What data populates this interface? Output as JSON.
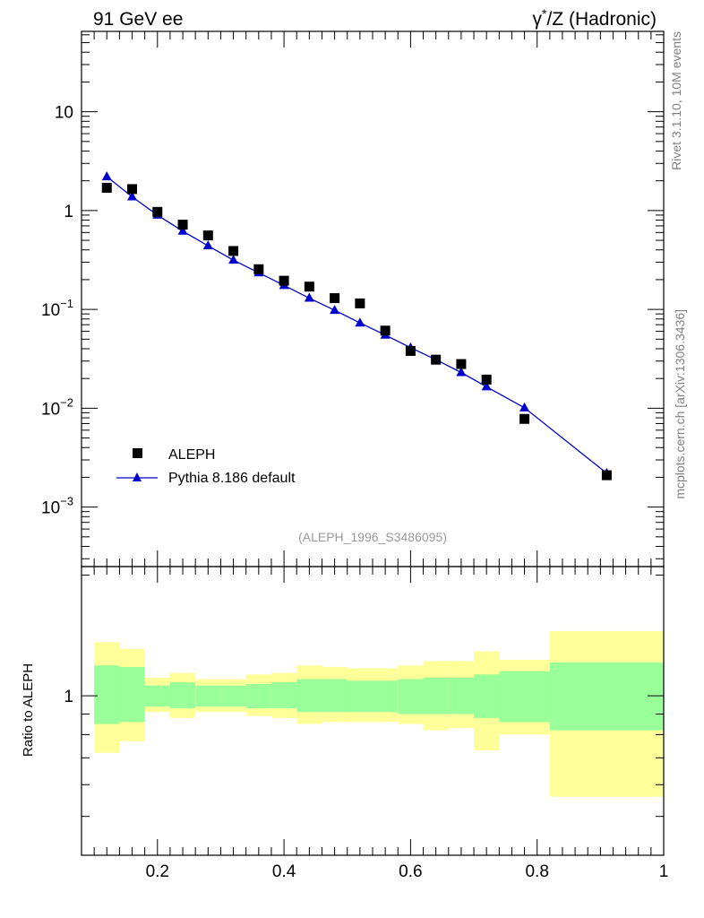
{
  "header": {
    "left_title": "91 GeV ee",
    "right_title_sym": "γ",
    "right_title_sup": "*",
    "right_title_rest": "/Z (Hadronic)"
  },
  "side_labels": {
    "rivet": "Rivet 3.1.10,  10M events",
    "mcplots": "mcplots.cern.ch [arXiv:1306.3436]"
  },
  "analysis_tag": "(ALEPH_1996_S3486095)",
  "legend": {
    "data_label": "ALEPH",
    "mc_label": "Pythia 8.186 default"
  },
  "colors": {
    "mc_line": "#0000cc",
    "data_marker": "#000000",
    "band_inner": "#99ff99",
    "band_outer": "#ffff99"
  },
  "chart_data": [
    {
      "type": "scatter",
      "panel": "main",
      "yscale": "log",
      "xlim": [
        0.08,
        1.0
      ],
      "ylim": [
        0.00025,
        65
      ],
      "xticks": [
        0.2,
        0.4,
        0.6,
        0.8,
        1
      ],
      "yticks": [
        {
          "value": 0.001,
          "base": "10",
          "exp": "−3"
        },
        {
          "value": 0.01,
          "base": "10",
          "exp": "−2"
        },
        {
          "value": 0.1,
          "base": "10",
          "exp": "−1"
        },
        {
          "value": 1,
          "base": "1",
          "exp": ""
        },
        {
          "value": 10,
          "base": "10",
          "exp": ""
        }
      ],
      "series": [
        {
          "name": "ALEPH",
          "marker": "square",
          "x": [
            0.12,
            0.16,
            0.2,
            0.24,
            0.28,
            0.32,
            0.36,
            0.4,
            0.44,
            0.48,
            0.52,
            0.56,
            0.6,
            0.64,
            0.68,
            0.72,
            0.78,
            0.91
          ],
          "y": [
            1.7,
            1.65,
            0.97,
            0.72,
            0.56,
            0.39,
            0.255,
            0.195,
            0.17,
            0.13,
            0.115,
            0.061,
            0.038,
            0.031,
            0.028,
            0.0195,
            0.0078,
            0.0021
          ]
        },
        {
          "name": "Pythia 8.186 default",
          "marker": "triangle",
          "x": [
            0.12,
            0.16,
            0.2,
            0.24,
            0.28,
            0.32,
            0.36,
            0.4,
            0.44,
            0.48,
            0.52,
            0.56,
            0.6,
            0.64,
            0.68,
            0.72,
            0.78,
            0.91
          ],
          "y": [
            2.2,
            1.38,
            0.9,
            0.62,
            0.44,
            0.315,
            0.235,
            0.175,
            0.13,
            0.098,
            0.073,
            0.055,
            0.041,
            0.031,
            0.023,
            0.0165,
            0.0101,
            0.0022
          ]
        }
      ]
    },
    {
      "type": "area",
      "panel": "ratio",
      "ylabel": "Ratio to ALEPH",
      "yscale": "log",
      "xlim": [
        0.08,
        1.0
      ],
      "ylim": [
        0.4,
        2.1
      ],
      "yticks": [
        1
      ],
      "bins": [
        {
          "x0": 0.1,
          "x1": 0.14,
          "inner": [
            0.85,
            1.19
          ],
          "outer": [
            0.72,
            1.36
          ]
        },
        {
          "x0": 0.14,
          "x1": 0.18,
          "inner": [
            0.86,
            1.18
          ],
          "outer": [
            0.77,
            1.31
          ]
        },
        {
          "x0": 0.18,
          "x1": 0.22,
          "inner": [
            0.94,
            1.06
          ],
          "outer": [
            0.91,
            1.11
          ]
        },
        {
          "x0": 0.22,
          "x1": 0.26,
          "inner": [
            0.93,
            1.08
          ],
          "outer": [
            0.88,
            1.14
          ]
        },
        {
          "x0": 0.26,
          "x1": 0.3,
          "inner": [
            0.94,
            1.06
          ],
          "outer": [
            0.91,
            1.1
          ]
        },
        {
          "x0": 0.3,
          "x1": 0.34,
          "inner": [
            0.94,
            1.06
          ],
          "outer": [
            0.91,
            1.1
          ]
        },
        {
          "x0": 0.34,
          "x1": 0.38,
          "inner": [
            0.93,
            1.07
          ],
          "outer": [
            0.89,
            1.13
          ]
        },
        {
          "x0": 0.38,
          "x1": 0.42,
          "inner": [
            0.93,
            1.08
          ],
          "outer": [
            0.88,
            1.14
          ]
        },
        {
          "x0": 0.42,
          "x1": 0.46,
          "inner": [
            0.91,
            1.1
          ],
          "outer": [
            0.85,
            1.19
          ]
        },
        {
          "x0": 0.46,
          "x1": 0.5,
          "inner": [
            0.91,
            1.1
          ],
          "outer": [
            0.86,
            1.18
          ]
        },
        {
          "x0": 0.5,
          "x1": 0.54,
          "inner": [
            0.91,
            1.09
          ],
          "outer": [
            0.86,
            1.17
          ]
        },
        {
          "x0": 0.54,
          "x1": 0.58,
          "inner": [
            0.91,
            1.09
          ],
          "outer": [
            0.86,
            1.17
          ]
        },
        {
          "x0": 0.58,
          "x1": 0.62,
          "inner": [
            0.9,
            1.1
          ],
          "outer": [
            0.85,
            1.19
          ]
        },
        {
          "x0": 0.62,
          "x1": 0.66,
          "inner": [
            0.9,
            1.11
          ],
          "outer": [
            0.82,
            1.22
          ]
        },
        {
          "x0": 0.66,
          "x1": 0.7,
          "inner": [
            0.9,
            1.11
          ],
          "outer": [
            0.83,
            1.22
          ]
        },
        {
          "x0": 0.7,
          "x1": 0.74,
          "inner": [
            0.88,
            1.13
          ],
          "outer": [
            0.73,
            1.29
          ]
        },
        {
          "x0": 0.74,
          "x1": 0.82,
          "inner": [
            0.86,
            1.15
          ],
          "outer": [
            0.8,
            1.23
          ]
        },
        {
          "x0": 0.82,
          "x1": 1.0,
          "inner": [
            0.82,
            1.21
          ],
          "outer": [
            0.56,
            1.45
          ]
        }
      ]
    }
  ]
}
